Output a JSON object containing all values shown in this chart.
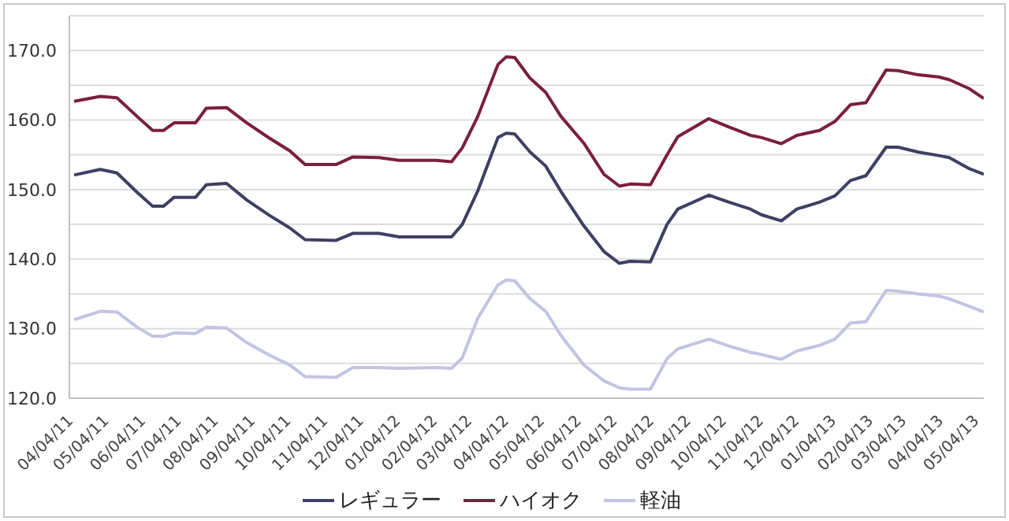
{
  "chart_data": {
    "type": "line",
    "xlim": [
      "2011-04-04",
      "2013-05-11"
    ],
    "xticks": [
      {
        "value": "2011-04-04",
        "label": "04/04/11"
      },
      {
        "value": "2011-05-04",
        "label": "05/04/11"
      },
      {
        "value": "2011-06-04",
        "label": "06/04/11"
      },
      {
        "value": "2011-07-04",
        "label": "07/04/11"
      },
      {
        "value": "2011-08-04",
        "label": "08/04/11"
      },
      {
        "value": "2011-09-04",
        "label": "09/04/11"
      },
      {
        "value": "2011-10-04",
        "label": "10/04/11"
      },
      {
        "value": "2011-11-04",
        "label": "11/04/11"
      },
      {
        "value": "2011-12-04",
        "label": "12/04/11"
      },
      {
        "value": "2012-01-04",
        "label": "01/04/12"
      },
      {
        "value": "2012-02-04",
        "label": "02/04/12"
      },
      {
        "value": "2012-03-04",
        "label": "03/04/12"
      },
      {
        "value": "2012-04-04",
        "label": "04/04/12"
      },
      {
        "value": "2012-05-04",
        "label": "05/04/12"
      },
      {
        "value": "2012-06-04",
        "label": "06/04/12"
      },
      {
        "value": "2012-07-04",
        "label": "07/04/12"
      },
      {
        "value": "2012-08-04",
        "label": "08/04/12"
      },
      {
        "value": "2012-09-04",
        "label": "09/04/12"
      },
      {
        "value": "2012-10-04",
        "label": "10/04/12"
      },
      {
        "value": "2012-11-04",
        "label": "11/04/12"
      },
      {
        "value": "2012-12-04",
        "label": "12/04/12"
      },
      {
        "value": "2013-01-04",
        "label": "01/04/13"
      },
      {
        "value": "2013-02-04",
        "label": "02/04/13"
      },
      {
        "value": "2013-03-04",
        "label": "03/04/13"
      },
      {
        "value": "2013-04-04",
        "label": "04/04/13"
      },
      {
        "value": "2013-05-04",
        "label": "05/04/13"
      }
    ],
    "ylim": [
      120,
      175
    ],
    "yticks": [
      {
        "value": 120,
        "label": "120.0"
      },
      {
        "value": 125,
        "label": null
      },
      {
        "value": 130,
        "label": "130.0"
      },
      {
        "value": 135,
        "label": null
      },
      {
        "value": 140,
        "label": "140.0"
      },
      {
        "value": 145,
        "label": null
      },
      {
        "value": 150,
        "label": "150.0"
      },
      {
        "value": 155,
        "label": null
      },
      {
        "value": 160,
        "label": "160.0"
      },
      {
        "value": 165,
        "label": null
      },
      {
        "value": 170,
        "label": "170.0"
      },
      {
        "value": 175,
        "label": null
      }
    ],
    "grid": "y",
    "legend": "bottom",
    "marker": "none",
    "line_style": "solid",
    "x": [
      "2011-04-08",
      "2011-04-30",
      "2011-05-14",
      "2011-05-31",
      "2011-06-13",
      "2011-06-22",
      "2011-07-01",
      "2011-07-19",
      "2011-07-28",
      "2011-08-14",
      "2011-08-31",
      "2011-09-19",
      "2011-10-06",
      "2011-10-19",
      "2011-11-14",
      "2011-11-28",
      "2011-12-20",
      "2012-01-06",
      "2012-02-06",
      "2012-02-19",
      "2012-02-28",
      "2012-03-12",
      "2012-03-29",
      "2012-04-05",
      "2012-04-12",
      "2012-04-25",
      "2012-05-08",
      "2012-05-21",
      "2012-06-09",
      "2012-06-26",
      "2012-07-09",
      "2012-07-18",
      "2012-08-04",
      "2012-08-18",
      "2012-08-27",
      "2012-09-13",
      "2012-09-22",
      "2012-10-09",
      "2012-10-27",
      "2012-11-05",
      "2012-11-22",
      "2012-12-05",
      "2012-12-24",
      "2013-01-06",
      "2013-01-19",
      "2013-02-01",
      "2013-02-18",
      "2013-02-28",
      "2013-03-17",
      "2013-04-03",
      "2013-04-12",
      "2013-04-29",
      "2013-05-11"
    ],
    "series": [
      {
        "name": "レギュラー",
        "color": "#3f3f63",
        "values": [
          152.1,
          152.9,
          152.4,
          149.6,
          147.6,
          147.6,
          148.9,
          148.9,
          150.7,
          150.9,
          148.5,
          146.3,
          144.5,
          142.8,
          142.7,
          143.7,
          143.7,
          143.2,
          143.2,
          143.2,
          145,
          149.8,
          157.5,
          158.1,
          158,
          155.4,
          153.4,
          149.7,
          144.8,
          141.1,
          139.4,
          139.7,
          139.6,
          145,
          147.2,
          148.5,
          149.2,
          148.2,
          147.2,
          146.4,
          145.5,
          147.2,
          148.2,
          149.1,
          151.3,
          152,
          156.1,
          156.1,
          155.4,
          154.9,
          154.6,
          153,
          152.2
        ]
      },
      {
        "name": "ハイオク",
        "color": "#7a1f3d",
        "values": [
          162.7,
          163.4,
          163.2,
          160.5,
          158.5,
          158.5,
          159.6,
          159.6,
          161.7,
          161.8,
          159.6,
          157.4,
          155.6,
          153.6,
          153.6,
          154.7,
          154.6,
          154.2,
          154.2,
          154,
          156,
          160.5,
          168,
          169.1,
          169,
          166,
          164,
          160.5,
          156.7,
          152.2,
          150.5,
          150.8,
          150.7,
          155,
          157.6,
          159.3,
          160.2,
          159,
          157.8,
          157.5,
          156.6,
          157.8,
          158.5,
          159.8,
          162.2,
          162.5,
          167.2,
          167.1,
          166.5,
          166.2,
          165.8,
          164.5,
          163.1
        ]
      },
      {
        "name": "軽油",
        "color": "#c3c3e3",
        "values": [
          131.3,
          132.5,
          132.4,
          130.2,
          128.9,
          128.9,
          129.4,
          129.3,
          130.2,
          130.1,
          128,
          126.2,
          124.8,
          123.1,
          123,
          124.4,
          124.4,
          124.3,
          124.4,
          124.3,
          125.8,
          131.5,
          136.3,
          137,
          136.9,
          134.3,
          132.5,
          129,
          124.8,
          122.5,
          121.5,
          121.3,
          121.3,
          125.7,
          127.1,
          128,
          128.5,
          127.5,
          126.6,
          126.3,
          125.6,
          126.8,
          127.6,
          128.5,
          130.8,
          131,
          135.5,
          135.4,
          135,
          134.7,
          134.3,
          133.2,
          132.4
        ]
      }
    ]
  }
}
